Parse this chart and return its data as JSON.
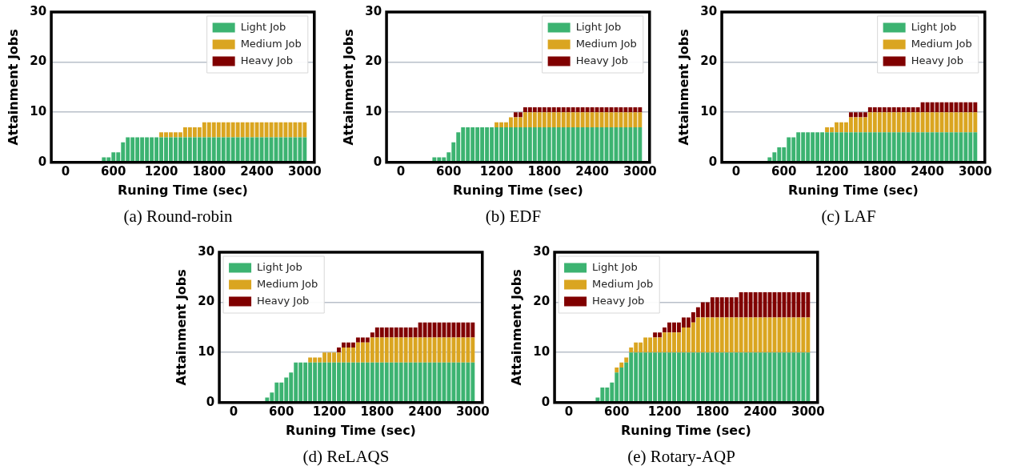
{
  "chart_data": [
    {
      "type": "bar",
      "stacked": true,
      "title": "(a) Round-robin",
      "xlabel": "Runing Time (sec)",
      "ylabel": "Attainment Jobs",
      "xlim": [
        -180,
        3120
      ],
      "xticks": [
        0,
        600,
        1200,
        1800,
        2400,
        3000
      ],
      "ylim": [
        0,
        30
      ],
      "yticks": [
        0,
        10,
        20,
        30
      ],
      "grid": "y",
      "legend": "top right",
      "x": [
        480,
        540,
        600,
        660,
        720,
        780,
        840,
        900,
        960,
        1020,
        1080,
        1140,
        1200,
        1260,
        1320,
        1380,
        1440,
        1500,
        1560,
        1620,
        1680,
        1740,
        1800,
        1860,
        1920,
        1980,
        2040,
        2100,
        2160,
        2220,
        2280,
        2340,
        2400,
        2460,
        2520,
        2580,
        2640,
        2700,
        2760,
        2820,
        2880,
        2940,
        3000
      ],
      "series": [
        {
          "name": "Light Job",
          "color": "#3cb371",
          "values": [
            1,
            1,
            2,
            2,
            4,
            5,
            5,
            5,
            5,
            5,
            5,
            5,
            5,
            5,
            5,
            5,
            5,
            5,
            5,
            5,
            5,
            5,
            5,
            5,
            5,
            5,
            5,
            5,
            5,
            5,
            5,
            5,
            5,
            5,
            5,
            5,
            5,
            5,
            5,
            5,
            5,
            5,
            5
          ]
        },
        {
          "name": "Medium Job",
          "color": "#daa520",
          "values": [
            0,
            0,
            0,
            0,
            0,
            0,
            0,
            0,
            0,
            0,
            0,
            0,
            1,
            1,
            1,
            1,
            1,
            2,
            2,
            2,
            2,
            3,
            3,
            3,
            3,
            3,
            3,
            3,
            3,
            3,
            3,
            3,
            3,
            3,
            3,
            3,
            3,
            3,
            3,
            3,
            3,
            3,
            3
          ]
        },
        {
          "name": "Heavy Job",
          "color": "#800000",
          "values": [
            0,
            0,
            0,
            0,
            0,
            0,
            0,
            0,
            0,
            0,
            0,
            0,
            0,
            0,
            0,
            0,
            0,
            0,
            0,
            0,
            0,
            0,
            0,
            0,
            0,
            0,
            0,
            0,
            0,
            0,
            0,
            0,
            0,
            0,
            0,
            0,
            0,
            0,
            0,
            0,
            0,
            0,
            0
          ]
        }
      ]
    },
    {
      "type": "bar",
      "stacked": true,
      "title": "(b) EDF",
      "xlabel": "Runing Time (sec)",
      "ylabel": "Attainment Jobs",
      "xlim": [
        -180,
        3120
      ],
      "xticks": [
        0,
        600,
        1200,
        1800,
        2400,
        3000
      ],
      "ylim": [
        0,
        30
      ],
      "yticks": [
        0,
        10,
        20,
        30
      ],
      "grid": "y",
      "legend": "top right",
      "x": [
        420,
        480,
        540,
        600,
        660,
        720,
        780,
        840,
        900,
        960,
        1020,
        1080,
        1140,
        1200,
        1260,
        1320,
        1380,
        1440,
        1500,
        1560,
        1620,
        1680,
        1740,
        1800,
        1860,
        1920,
        1980,
        2040,
        2100,
        2160,
        2220,
        2280,
        2340,
        2400,
        2460,
        2520,
        2580,
        2640,
        2700,
        2760,
        2820,
        2880,
        2940,
        3000
      ],
      "series": [
        {
          "name": "Light Job",
          "color": "#3cb371",
          "values": [
            1,
            1,
            1,
            2,
            4,
            6,
            7,
            7,
            7,
            7,
            7,
            7,
            7,
            7,
            7,
            7,
            7,
            7,
            7,
            7,
            7,
            7,
            7,
            7,
            7,
            7,
            7,
            7,
            7,
            7,
            7,
            7,
            7,
            7,
            7,
            7,
            7,
            7,
            7,
            7,
            7,
            7,
            7,
            7
          ]
        },
        {
          "name": "Medium Job",
          "color": "#daa520",
          "values": [
            0,
            0,
            0,
            0,
            0,
            0,
            0,
            0,
            0,
            0,
            0,
            0,
            0,
            1,
            1,
            1,
            2,
            2,
            2,
            3,
            3,
            3,
            3,
            3,
            3,
            3,
            3,
            3,
            3,
            3,
            3,
            3,
            3,
            3,
            3,
            3,
            3,
            3,
            3,
            3,
            3,
            3,
            3,
            3
          ]
        },
        {
          "name": "Heavy Job",
          "color": "#800000",
          "values": [
            0,
            0,
            0,
            0,
            0,
            0,
            0,
            0,
            0,
            0,
            0,
            0,
            0,
            0,
            0,
            0,
            0,
            1,
            1,
            1,
            1,
            1,
            1,
            1,
            1,
            1,
            1,
            1,
            1,
            1,
            1,
            1,
            1,
            1,
            1,
            1,
            1,
            1,
            1,
            1,
            1,
            1,
            1,
            1
          ]
        }
      ]
    },
    {
      "type": "bar",
      "stacked": true,
      "title": "(c) LAF",
      "xlabel": "Runing Time (sec)",
      "ylabel": "Attainment Jobs",
      "xlim": [
        -180,
        3120
      ],
      "xticks": [
        0,
        600,
        1200,
        1800,
        2400,
        3000
      ],
      "ylim": [
        0,
        30
      ],
      "yticks": [
        0,
        10,
        20,
        30
      ],
      "grid": "y",
      "legend": "top right",
      "x": [
        420,
        480,
        540,
        600,
        660,
        720,
        780,
        840,
        900,
        960,
        1020,
        1080,
        1140,
        1200,
        1260,
        1320,
        1380,
        1440,
        1500,
        1560,
        1620,
        1680,
        1740,
        1800,
        1860,
        1920,
        1980,
        2040,
        2100,
        2160,
        2220,
        2280,
        2340,
        2400,
        2460,
        2520,
        2580,
        2640,
        2700,
        2760,
        2820,
        2880,
        2940,
        3000
      ],
      "series": [
        {
          "name": "Light Job",
          "color": "#3cb371",
          "values": [
            1,
            2,
            3,
            3,
            5,
            5,
            6,
            6,
            6,
            6,
            6,
            6,
            6,
            6,
            6,
            6,
            6,
            6,
            6,
            6,
            6,
            6,
            6,
            6,
            6,
            6,
            6,
            6,
            6,
            6,
            6,
            6,
            6,
            6,
            6,
            6,
            6,
            6,
            6,
            6,
            6,
            6,
            6,
            6
          ]
        },
        {
          "name": "Medium Job",
          "color": "#daa520",
          "values": [
            0,
            0,
            0,
            0,
            0,
            0,
            0,
            0,
            0,
            0,
            0,
            0,
            1,
            1,
            2,
            2,
            2,
            3,
            3,
            3,
            3,
            4,
            4,
            4,
            4,
            4,
            4,
            4,
            4,
            4,
            4,
            4,
            4,
            4,
            4,
            4,
            4,
            4,
            4,
            4,
            4,
            4,
            4,
            4
          ]
        },
        {
          "name": "Heavy Job",
          "color": "#800000",
          "values": [
            0,
            0,
            0,
            0,
            0,
            0,
            0,
            0,
            0,
            0,
            0,
            0,
            0,
            0,
            0,
            0,
            0,
            1,
            1,
            1,
            1,
            1,
            1,
            1,
            1,
            1,
            1,
            1,
            1,
            1,
            1,
            1,
            2,
            2,
            2,
            2,
            2,
            2,
            2,
            2,
            2,
            2,
            2,
            2
          ]
        }
      ]
    },
    {
      "type": "bar",
      "stacked": true,
      "title": "(d) ReLAQS",
      "xlabel": "Runing Time (sec)",
      "ylabel": "Attainment Jobs",
      "xlim": [
        -180,
        3120
      ],
      "xticks": [
        0,
        600,
        1200,
        1800,
        2400,
        3000
      ],
      "ylim": [
        0,
        30
      ],
      "yticks": [
        0,
        10,
        20,
        30
      ],
      "grid": "y",
      "legend": "top left",
      "x": [
        420,
        480,
        540,
        600,
        660,
        720,
        780,
        840,
        900,
        960,
        1020,
        1080,
        1140,
        1200,
        1260,
        1320,
        1380,
        1440,
        1500,
        1560,
        1620,
        1680,
        1740,
        1800,
        1860,
        1920,
        1980,
        2040,
        2100,
        2160,
        2220,
        2280,
        2340,
        2400,
        2460,
        2520,
        2580,
        2640,
        2700,
        2760,
        2820,
        2880,
        2940,
        3000
      ],
      "series": [
        {
          "name": "Light Job",
          "color": "#3cb371",
          "values": [
            1,
            2,
            4,
            4,
            5,
            6,
            8,
            8,
            8,
            8,
            8,
            8,
            8,
            8,
            8,
            8,
            8,
            8,
            8,
            8,
            8,
            8,
            8,
            8,
            8,
            8,
            8,
            8,
            8,
            8,
            8,
            8,
            8,
            8,
            8,
            8,
            8,
            8,
            8,
            8,
            8,
            8,
            8,
            8
          ]
        },
        {
          "name": "Medium Job",
          "color": "#daa520",
          "values": [
            0,
            0,
            0,
            0,
            0,
            0,
            0,
            0,
            0,
            1,
            1,
            1,
            2,
            2,
            2,
            2,
            3,
            3,
            3,
            4,
            4,
            4,
            5,
            5,
            5,
            5,
            5,
            5,
            5,
            5,
            5,
            5,
            5,
            5,
            5,
            5,
            5,
            5,
            5,
            5,
            5,
            5,
            5,
            5
          ]
        },
        {
          "name": "Heavy Job",
          "color": "#800000",
          "values": [
            0,
            0,
            0,
            0,
            0,
            0,
            0,
            0,
            0,
            0,
            0,
            0,
            0,
            0,
            0,
            1,
            1,
            1,
            1,
            1,
            1,
            1,
            1,
            2,
            2,
            2,
            2,
            2,
            2,
            2,
            2,
            2,
            3,
            3,
            3,
            3,
            3,
            3,
            3,
            3,
            3,
            3,
            3,
            3
          ]
        }
      ]
    },
    {
      "type": "bar",
      "stacked": true,
      "title": "(e) Rotary-AQP",
      "xlabel": "Runing Time (sec)",
      "ylabel": "Attainment Jobs",
      "xlim": [
        -180,
        3120
      ],
      "xticks": [
        0,
        600,
        1200,
        1800,
        2400,
        3000
      ],
      "ylim": [
        0,
        30
      ],
      "yticks": [
        0,
        10,
        20,
        30
      ],
      "grid": "y",
      "legend": "top left",
      "x": [
        360,
        420,
        480,
        540,
        600,
        660,
        720,
        780,
        840,
        900,
        960,
        1020,
        1080,
        1140,
        1200,
        1260,
        1320,
        1380,
        1440,
        1500,
        1560,
        1620,
        1680,
        1740,
        1800,
        1860,
        1920,
        1980,
        2040,
        2100,
        2160,
        2220,
        2280,
        2340,
        2400,
        2460,
        2520,
        2580,
        2640,
        2700,
        2760,
        2820,
        2880,
        2940,
        3000
      ],
      "series": [
        {
          "name": "Light Job",
          "color": "#3cb371",
          "values": [
            1,
            3,
            3,
            4,
            6,
            7,
            8,
            10,
            10,
            10,
            10,
            10,
            10,
            10,
            10,
            10,
            10,
            10,
            10,
            10,
            10,
            10,
            10,
            10,
            10,
            10,
            10,
            10,
            10,
            10,
            10,
            10,
            10,
            10,
            10,
            10,
            10,
            10,
            10,
            10,
            10,
            10,
            10,
            10,
            10
          ]
        },
        {
          "name": "Medium Job",
          "color": "#daa520",
          "values": [
            0,
            0,
            0,
            0,
            1,
            1,
            1,
            1,
            2,
            2,
            3,
            3,
            3,
            3,
            4,
            4,
            4,
            4,
            5,
            5,
            6,
            7,
            7,
            7,
            7,
            7,
            7,
            7,
            7,
            7,
            7,
            7,
            7,
            7,
            7,
            7,
            7,
            7,
            7,
            7,
            7,
            7,
            7,
            7,
            7
          ]
        },
        {
          "name": "Heavy Job",
          "color": "#800000",
          "values": [
            0,
            0,
            0,
            0,
            0,
            0,
            0,
            0,
            0,
            0,
            0,
            0,
            1,
            1,
            1,
            2,
            2,
            2,
            2,
            2,
            2,
            2,
            3,
            3,
            4,
            4,
            4,
            4,
            4,
            4,
            5,
            5,
            5,
            5,
            5,
            5,
            5,
            5,
            5,
            5,
            5,
            5,
            5,
            5,
            5
          ]
        }
      ]
    }
  ]
}
